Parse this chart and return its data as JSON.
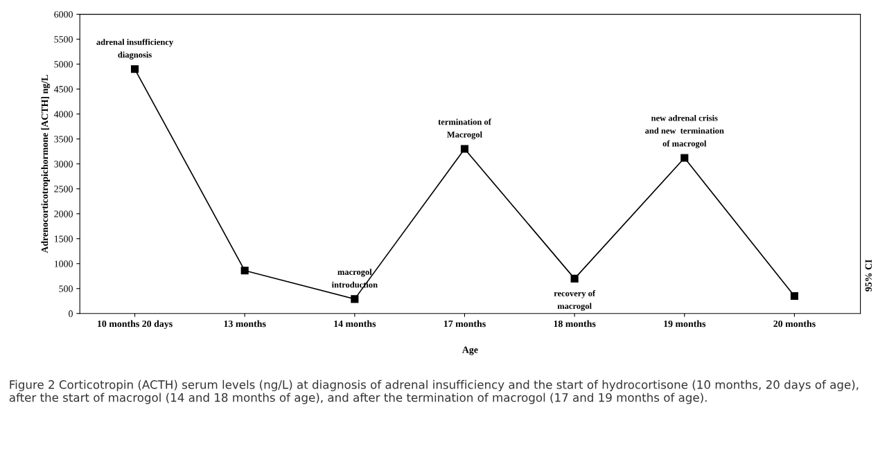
{
  "chart_data": {
    "type": "line",
    "xlabel": "Age",
    "ylabel": "Adrenocorticotropichormone [ACTH] ng/L",
    "categories": [
      "10 months 20 days",
      "13 months",
      "14 months",
      "17 months",
      "18 months",
      "19 months",
      "20 months"
    ],
    "series": [
      {
        "color": "#000000",
        "values": [
          4900,
          860,
          290,
          3300,
          700,
          3120,
          350
        ]
      }
    ],
    "ylim": [
      0,
      6000
    ],
    "yticks": [
      0,
      500,
      1000,
      1500,
      2000,
      2500,
      3000,
      3500,
      4000,
      4500,
      5000,
      5500,
      6000
    ],
    "marker": "square",
    "line_style": "solid",
    "grid": false,
    "legend": false,
    "annotations": [
      {
        "text": "adrenal insufficiency\ndiagnosis",
        "x": "10 months 20 days",
        "y": 4900
      },
      {
        "text": "macrogol\nintroduction",
        "x": "14 months",
        "y": 290
      },
      {
        "text": "termination of\nMacrogol",
        "x": "17 months",
        "y": 3300
      },
      {
        "text": "recovery of\nmacrogol",
        "x": "18 months",
        "y": 700
      },
      {
        "text": "new adrenal crisis\nand new  termination\nof macrogol",
        "x": "19 months",
        "y": 3120
      },
      "95% CI",
      "Figure 2 Corticotropin (ACTH) serum levels (ng/L) at diagnosis of adrenal insufficiency and the start of hydrocortisone (10 months, 20 days of age), after the start of macrogol (14 and 18 months of age), and after the termination of macrogol (17 and 19 months of age)."
    ]
  }
}
